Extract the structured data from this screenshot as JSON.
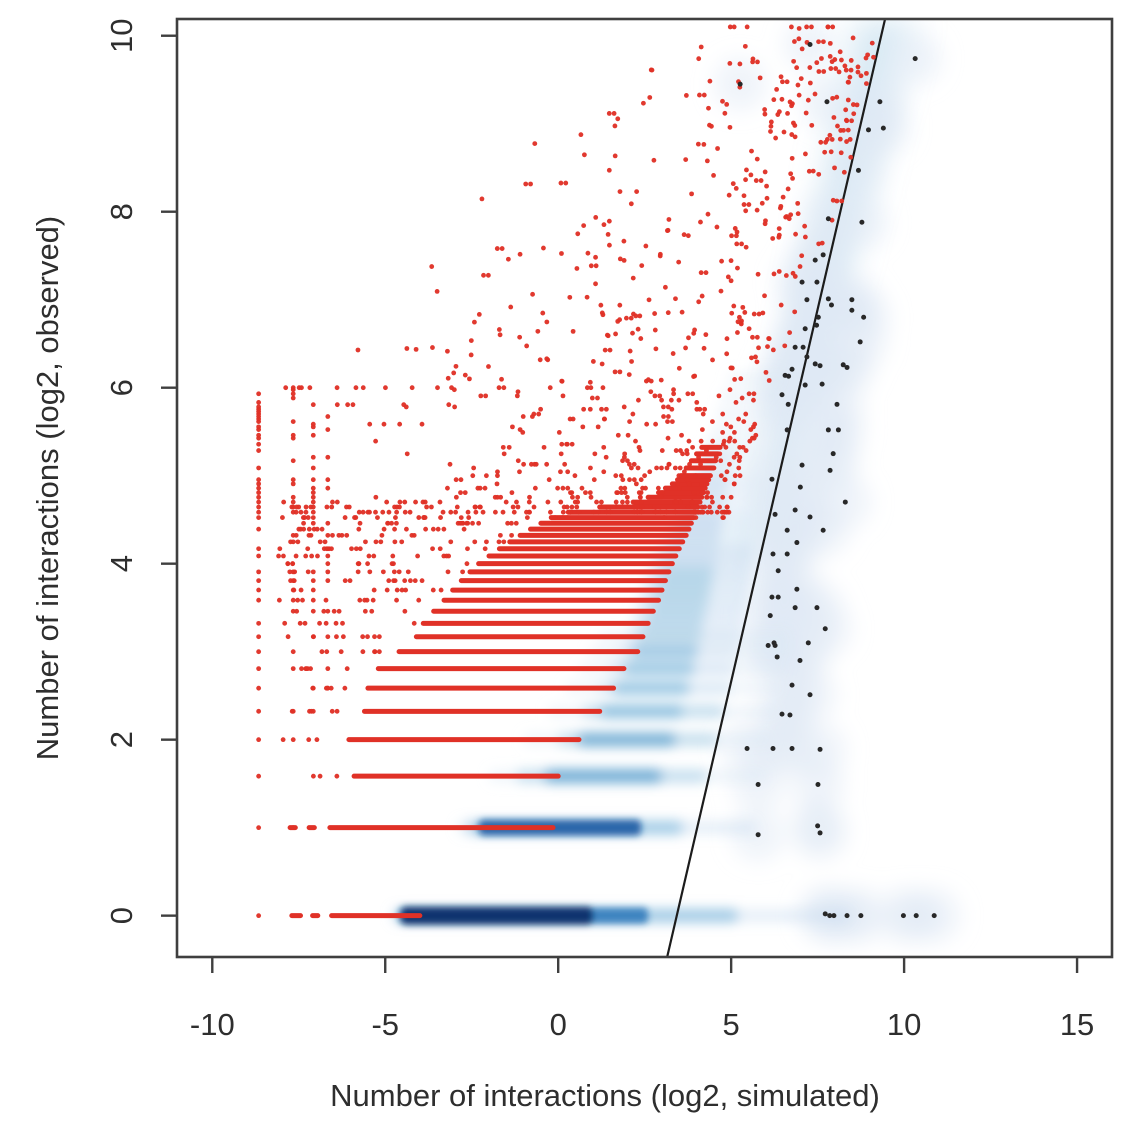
{
  "chart_data": {
    "type": "scatter",
    "title": "",
    "xlabel": "Number of interactions (log2, simulated)",
    "ylabel": "Number of interactions (log2, observed)",
    "axes": {
      "x": {
        "label": "Number of interactions (log2, simulated)",
        "ticks": [
          -10,
          -5,
          0,
          5,
          10,
          15
        ],
        "lim": [
          -11.02,
          16.01
        ]
      },
      "y": {
        "label": "Number of interactions (log2, observed)",
        "ticks": [
          0,
          2,
          4,
          6,
          8,
          10
        ],
        "lim": [
          -0.47,
          10.19
        ]
      }
    },
    "grid": false,
    "legend": null,
    "fit_line": {
      "x": [
        3.15,
        9.45
      ],
      "y": [
        -0.47,
        10.19
      ]
    },
    "style": {
      "red": "#e03127",
      "black_point": "#282828",
      "line": "#1c1c1c",
      "axis": "#3f3f3f",
      "text": "#2e2e2e",
      "haze": "#b6d4ea",
      "halo": "#dfeaf5",
      "blues": [
        "#dce9f5",
        "#c6dbef",
        "#9ecae1",
        "#6baed6",
        "#4292c6",
        "#2171b5",
        "#08519c",
        "#08306b"
      ]
    },
    "density_bands": [
      [
        0,
        -4.8,
        8.4,
        0.16
      ],
      [
        0,
        -4.7,
        5.2,
        0.4
      ],
      [
        0,
        -4.6,
        2.6,
        0.75
      ],
      [
        0,
        -4.55,
        1.0,
        1.0
      ],
      [
        1,
        -2.9,
        5.7,
        0.14
      ],
      [
        1,
        -2.6,
        3.6,
        0.4
      ],
      [
        1,
        -2.3,
        2.4,
        0.8
      ],
      [
        1.585,
        -2.0,
        6.0,
        0.12
      ],
      [
        1.585,
        -1.2,
        4.3,
        0.33
      ],
      [
        1.585,
        -0.4,
        3.0,
        0.62
      ],
      [
        2,
        -1.0,
        6.2,
        0.11
      ],
      [
        2,
        0.0,
        4.6,
        0.3
      ],
      [
        2,
        0.55,
        3.4,
        0.52
      ],
      [
        2.322,
        -0.3,
        6.4,
        0.1
      ],
      [
        2.322,
        0.7,
        4.8,
        0.27
      ],
      [
        2.322,
        1.2,
        3.6,
        0.48
      ],
      [
        2.585,
        0.2,
        6.5,
        0.1
      ],
      [
        2.585,
        1.1,
        5.0,
        0.25
      ],
      [
        2.585,
        1.55,
        3.8,
        0.44
      ],
      [
        2.807,
        0.6,
        6.6,
        0.09
      ],
      [
        2.807,
        1.4,
        5.1,
        0.23
      ],
      [
        2.807,
        1.85,
        3.95,
        0.41
      ],
      [
        3,
        0.9,
        6.7,
        0.09
      ],
      [
        3,
        1.7,
        5.2,
        0.22
      ],
      [
        3,
        2.1,
        4.05,
        0.38
      ],
      [
        3.17,
        1.2,
        6.7,
        0.08
      ],
      [
        3.17,
        1.95,
        5.3,
        0.2
      ],
      [
        3.17,
        2.3,
        4.15,
        0.35
      ],
      [
        3.322,
        2.1,
        5.35,
        0.19
      ],
      [
        3.322,
        2.45,
        4.2,
        0.33
      ],
      [
        3.459,
        2.2,
        5.4,
        0.18
      ],
      [
        3.459,
        2.6,
        4.28,
        0.31
      ],
      [
        3.585,
        2.3,
        5.45,
        0.17
      ],
      [
        3.585,
        2.7,
        4.35,
        0.3
      ],
      [
        3.7,
        2.4,
        5.5,
        0.16
      ],
      [
        3.7,
        2.8,
        4.4,
        0.29
      ],
      [
        3.807,
        2.5,
        5.55,
        0.15
      ],
      [
        3.807,
        2.9,
        4.45,
        0.27
      ],
      [
        3.907,
        2.6,
        5.6,
        0.15
      ],
      [
        3.907,
        3.0,
        4.5,
        0.26
      ],
      [
        4,
        2.7,
        5.6,
        0.14
      ],
      [
        4,
        3.05,
        4.55,
        0.25
      ],
      [
        4.087,
        2.8,
        5.65,
        0.13
      ],
      [
        4.087,
        3.15,
        4.6,
        0.23
      ],
      [
        4.17,
        2.9,
        5.65,
        0.13
      ],
      [
        4.17,
        3.2,
        4.62,
        0.22
      ],
      [
        4.248,
        3.0,
        5.7,
        0.12
      ],
      [
        4.248,
        3.3,
        4.65,
        0.21
      ],
      [
        4.322,
        3.1,
        5.7,
        0.12
      ],
      [
        4.322,
        3.35,
        4.7,
        0.2
      ],
      [
        4.392,
        3.2,
        5.72,
        0.11
      ],
      [
        4.392,
        3.4,
        4.72,
        0.19
      ],
      [
        4.459,
        3.3,
        5.75,
        0.11
      ],
      [
        4.459,
        3.5,
        4.75,
        0.19
      ],
      [
        4.524,
        3.4,
        5.75,
        0.1
      ],
      [
        4.524,
        3.55,
        4.77,
        0.18
      ],
      [
        4.585,
        3.5,
        5.8,
        0.1
      ],
      [
        4.585,
        3.6,
        4.8,
        0.17
      ],
      [
        4.7,
        3.6,
        5.8,
        0.1
      ],
      [
        4.7,
        3.7,
        4.85,
        0.16
      ],
      [
        4.807,
        3.7,
        5.85,
        0.09
      ],
      [
        4.807,
        3.8,
        4.9,
        0.15
      ],
      [
        4.907,
        3.8,
        5.85,
        0.09
      ],
      [
        4.907,
        3.9,
        4.95,
        0.15
      ],
      [
        5,
        3.9,
        5.9,
        0.09
      ],
      [
        5,
        4.0,
        5.0,
        0.14
      ],
      [
        5.17,
        4.05,
        5.95,
        0.08
      ],
      [
        5.17,
        4.15,
        5.1,
        0.13
      ],
      [
        5.322,
        4.2,
        6.0,
        0.08
      ],
      [
        5.322,
        4.3,
        5.2,
        0.12
      ],
      [
        5.5,
        4.4,
        6.1,
        0.08
      ],
      [
        5.7,
        4.55,
        6.25,
        0.07
      ],
      [
        5.9,
        4.7,
        6.45,
        0.07
      ],
      [
        6.1,
        4.9,
        6.6,
        0.06
      ]
    ],
    "red_streaks": [
      [
        0,
        -7.7,
        -7.45
      ],
      [
        0,
        -7.1,
        -6.95
      ],
      [
        0,
        -6.55,
        -4.0
      ],
      [
        1,
        -7.75,
        -7.6
      ],
      [
        1,
        -7.2,
        -7.05
      ],
      [
        1,
        -6.6,
        -0.15
      ],
      [
        1.585,
        -5.9,
        0.0
      ],
      [
        2,
        -6.05,
        0.6
      ],
      [
        2.322,
        -5.6,
        1.2
      ],
      [
        2.585,
        -5.5,
        1.6
      ],
      [
        2.807,
        -5.2,
        1.9
      ],
      [
        3,
        -4.6,
        2.3
      ],
      [
        3.17,
        -4.1,
        2.45
      ],
      [
        3.322,
        -3.9,
        2.6
      ],
      [
        3.459,
        -3.6,
        2.75
      ],
      [
        3.585,
        -3.3,
        2.9
      ],
      [
        3.7,
        -3.05,
        3.0
      ],
      [
        3.807,
        -2.8,
        3.1
      ],
      [
        3.907,
        -2.55,
        3.2
      ],
      [
        4,
        -2.3,
        3.3
      ],
      [
        4.087,
        -2.0,
        3.4
      ],
      [
        4.17,
        -1.7,
        3.5
      ],
      [
        4.248,
        -1.4,
        3.6
      ],
      [
        4.322,
        -1.1,
        3.7
      ],
      [
        4.392,
        -0.8,
        3.78
      ],
      [
        4.459,
        -0.5,
        3.85
      ],
      [
        4.524,
        -0.2,
        3.92
      ],
      [
        4.585,
        0.3,
        3.98
      ],
      [
        4.644,
        1.2,
        4.04
      ],
      [
        4.7,
        2.2,
        4.1
      ],
      [
        4.755,
        2.6,
        4.15
      ],
      [
        4.807,
        2.9,
        4.2
      ],
      [
        4.858,
        3.1,
        4.25
      ],
      [
        4.907,
        3.3,
        4.3
      ],
      [
        4.954,
        3.45,
        4.35
      ],
      [
        5,
        3.55,
        4.4
      ],
      [
        5.087,
        3.7,
        4.5
      ],
      [
        5.17,
        3.85,
        4.55
      ],
      [
        5.248,
        4.0,
        4.62
      ],
      [
        5.322,
        4.15,
        4.68
      ]
    ],
    "red_columns": [
      {
        "x": -8.66,
        "ymin": 0.0,
        "ymax": 6.0,
        "p": 0.85
      },
      {
        "x": -7.66,
        "ymin": 1.0,
        "ymax": 6.0,
        "p": 0.6
      },
      {
        "x": -7.08,
        "ymin": 1.585,
        "ymax": 5.9,
        "p": 0.5
      },
      {
        "x": -6.66,
        "ymin": 2.322,
        "ymax": 5.7,
        "p": 0.45
      }
    ],
    "red_row_dots": [
      {
        "y": 6.0,
        "x0": -8.5,
        "x1": -2.0,
        "n": 11
      },
      {
        "y": 5.807,
        "x0": -6.5,
        "x1": -3.0,
        "n": 5
      },
      {
        "y": 5.585,
        "x0": -6.0,
        "x1": -3.0,
        "n": 4
      }
    ],
    "red_scatter_spec": {
      "seed": 11,
      "count": 680,
      "y_min": 4.55,
      "y_max": 10.1,
      "y_power": 1.7,
      "x_power": 0.42,
      "left_bound_below6": -7.0,
      "left_bound_slope_above6": 2.7,
      "left_bound_at6": -8.7,
      "right_bound_line_offset": -0.05,
      "right_bound_taper_below_y8": 0.35,
      "pair_prob": 0.1
    },
    "black_points": [
      [
        10.32,
        9.74
      ],
      [
        9.3,
        9.25
      ],
      [
        7.28,
        9.9
      ],
      [
        5.26,
        9.45
      ],
      [
        7.77,
        9.25
      ],
      [
        9.4,
        8.95
      ],
      [
        8.97,
        8.93
      ],
      [
        8.68,
        8.47
      ],
      [
        8.78,
        7.88
      ],
      [
        7.81,
        7.92
      ],
      [
        7.66,
        7.51
      ],
      [
        7.43,
        7.45
      ],
      [
        7.05,
        7.2
      ],
      [
        7.48,
        7.2
      ],
      [
        7.81,
        7.01
      ],
      [
        7.19,
        7.0
      ],
      [
        8.49,
        7.0
      ],
      [
        7.9,
        6.94
      ],
      [
        8.49,
        6.88
      ],
      [
        7.52,
        6.8
      ],
      [
        8.83,
        6.8
      ],
      [
        7.47,
        6.71
      ],
      [
        7.14,
        6.67
      ],
      [
        6.85,
        6.46
      ],
      [
        7.08,
        6.46
      ],
      [
        8.73,
        6.52
      ],
      [
        7.19,
        6.35
      ],
      [
        7.43,
        6.27
      ],
      [
        7.57,
        6.25
      ],
      [
        8.24,
        6.26
      ],
      [
        8.35,
        6.23
      ],
      [
        6.76,
        6.21
      ],
      [
        6.56,
        6.14
      ],
      [
        6.66,
        6.13
      ],
      [
        7.63,
        6.04
      ],
      [
        7.14,
        6.03
      ],
      [
        6.47,
        5.92
      ],
      [
        6.65,
        5.81
      ],
      [
        8.06,
        5.81
      ],
      [
        6.62,
        5.52
      ],
      [
        7.81,
        5.52
      ],
      [
        8.1,
        5.52
      ],
      [
        7.95,
        5.25
      ],
      [
        7.05,
        5.12
      ],
      [
        7.86,
        5.06
      ],
      [
        6.18,
        4.96
      ],
      [
        7.0,
        4.87
      ],
      [
        8.3,
        4.7
      ],
      [
        6.85,
        4.61
      ],
      [
        6.27,
        4.56
      ],
      [
        7.28,
        4.53
      ],
      [
        6.62,
        4.38
      ],
      [
        7.66,
        4.38
      ],
      [
        6.9,
        4.24
      ],
      [
        6.21,
        4.11
      ],
      [
        6.62,
        4.11
      ],
      [
        6.36,
        3.92
      ],
      [
        6.9,
        3.71
      ],
      [
        6.18,
        3.62
      ],
      [
        6.36,
        3.62
      ],
      [
        6.85,
        3.5
      ],
      [
        7.48,
        3.5
      ],
      [
        6.13,
        3.41
      ],
      [
        7.72,
        3.26
      ],
      [
        6.24,
        3.1
      ],
      [
        7.23,
        3.1
      ],
      [
        6.07,
        3.07
      ],
      [
        6.27,
        3.07
      ],
      [
        6.33,
        2.94
      ],
      [
        6.99,
        2.9
      ],
      [
        6.76,
        2.62
      ],
      [
        7.28,
        2.51
      ],
      [
        6.47,
        2.29
      ],
      [
        6.7,
        2.28
      ],
      [
        5.46,
        1.9
      ],
      [
        6.21,
        1.9
      ],
      [
        6.76,
        1.9
      ],
      [
        7.57,
        1.89
      ],
      [
        5.78,
        1.49
      ],
      [
        7.51,
        1.49
      ],
      [
        5.78,
        0.92
      ],
      [
        7.57,
        0.94
      ],
      [
        7.5,
        1.02
      ],
      [
        7.72,
        0.02
      ],
      [
        7.85,
        0.0
      ],
      [
        7.97,
        0.0
      ],
      [
        8.35,
        0.0
      ],
      [
        8.75,
        0.0
      ],
      [
        9.98,
        0.0
      ],
      [
        10.35,
        0.0
      ],
      [
        10.87,
        0.0
      ]
    ]
  }
}
